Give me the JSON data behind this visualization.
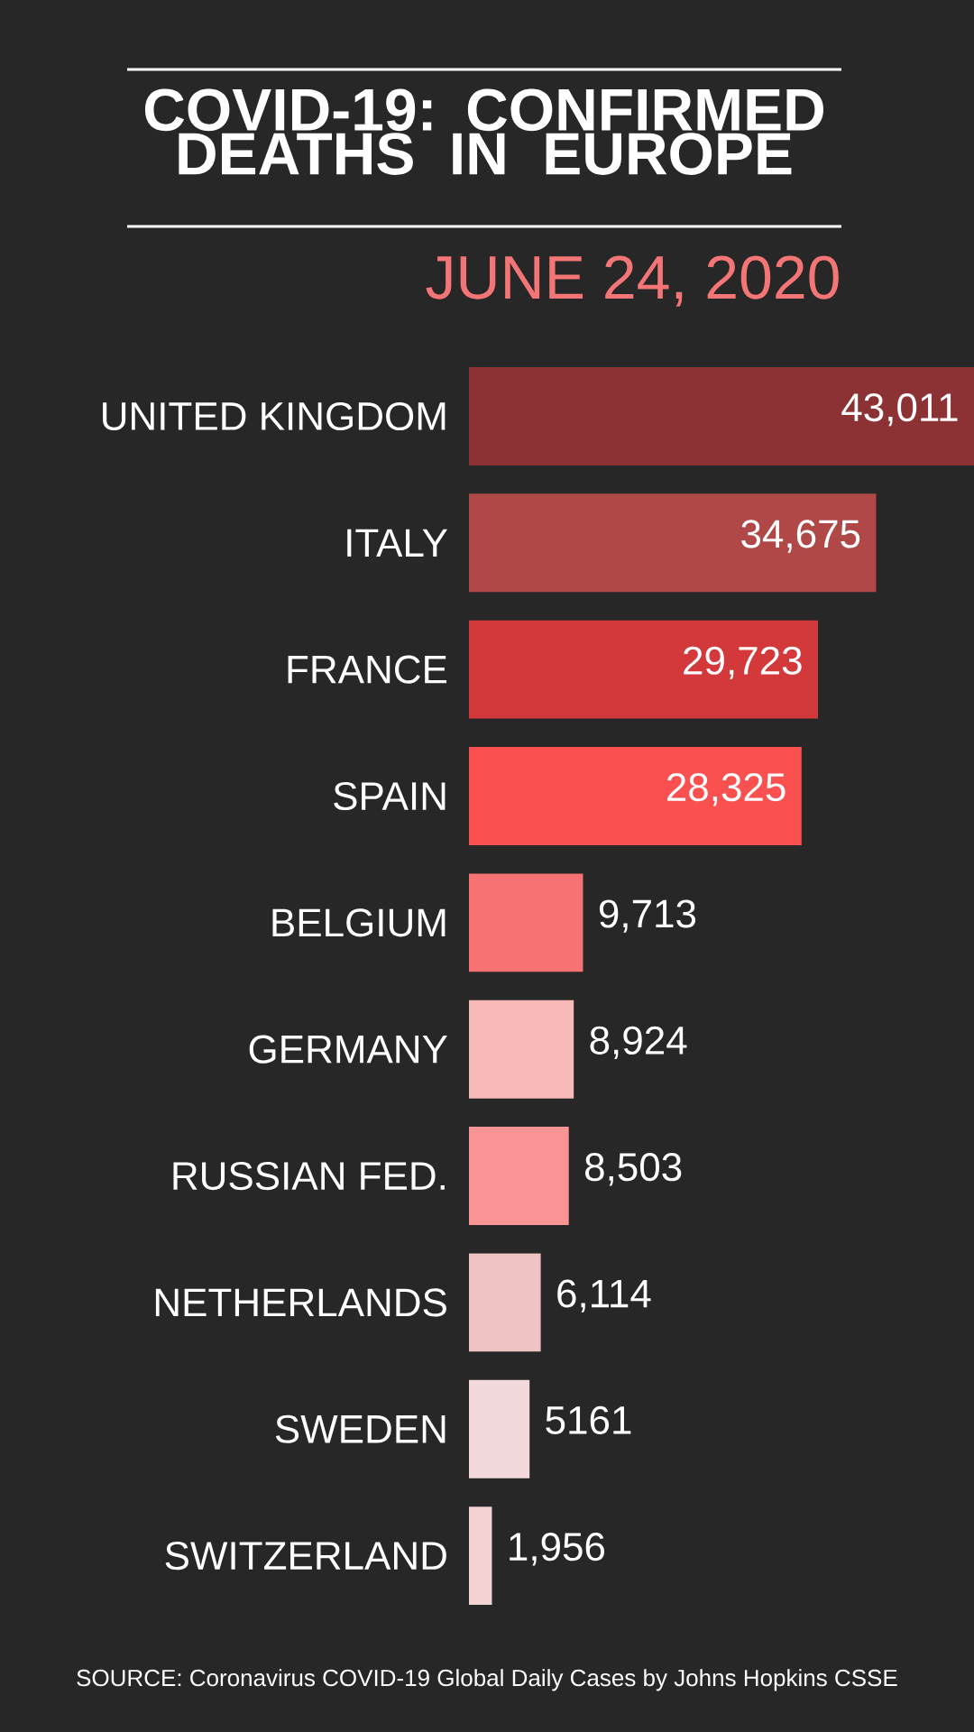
{
  "chart_data": {
    "type": "bar",
    "orientation": "horizontal",
    "title": "COVID-19: CONFIRMED DEATHS IN EUROPE",
    "subtitle": "JUNE 24, 2020",
    "categories": [
      "UNITED KINGDOM",
      "ITALY",
      "FRANCE",
      "SPAIN",
      "BELGIUM",
      "GERMANY",
      "RUSSIAN FED.",
      "NETHERLANDS",
      "SWEDEN",
      "SWITZERLAND"
    ],
    "values": [
      43011,
      34675,
      29723,
      28325,
      9713,
      8924,
      8503,
      6114,
      5161,
      1956
    ],
    "value_labels": [
      "43,011",
      "34,675",
      "29,723",
      "28,325",
      "9,713",
      "8,924",
      "8,503",
      "6,114",
      "5161",
      "1,956"
    ],
    "colors": [
      "#8c3234",
      "#b04848",
      "#d3393b",
      "#fa5050",
      "#f77272",
      "#f7b8b8",
      "#fb9595",
      "#efc2c3",
      "#f3d9dc",
      "#f2d2d3"
    ],
    "tick_labels": "y",
    "annotations": [
      "SOURCE: Coronavirus COVID-19 Global Daily Cases by Johns Hopkins CSSE"
    ]
  }
}
